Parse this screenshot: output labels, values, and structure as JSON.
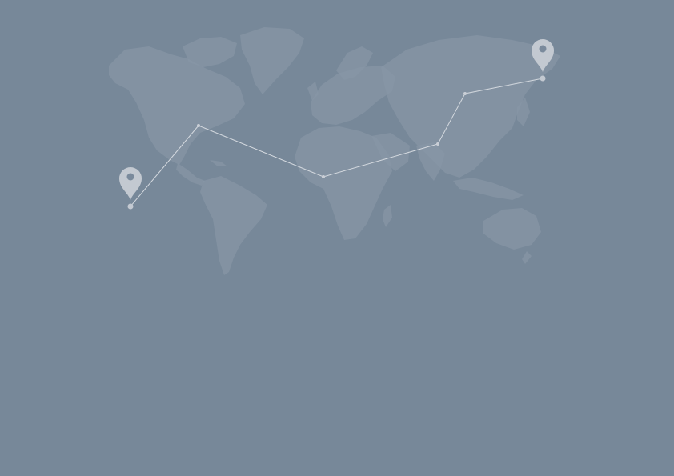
{
  "map": {
    "background_color": "#778899",
    "land_color": "#8795a6",
    "route_color": "#d4d9df",
    "marker_color": "#c3c9d1",
    "icons": {
      "start_marker": "map-pin-icon",
      "end_marker": "map-pin-icon"
    }
  }
}
